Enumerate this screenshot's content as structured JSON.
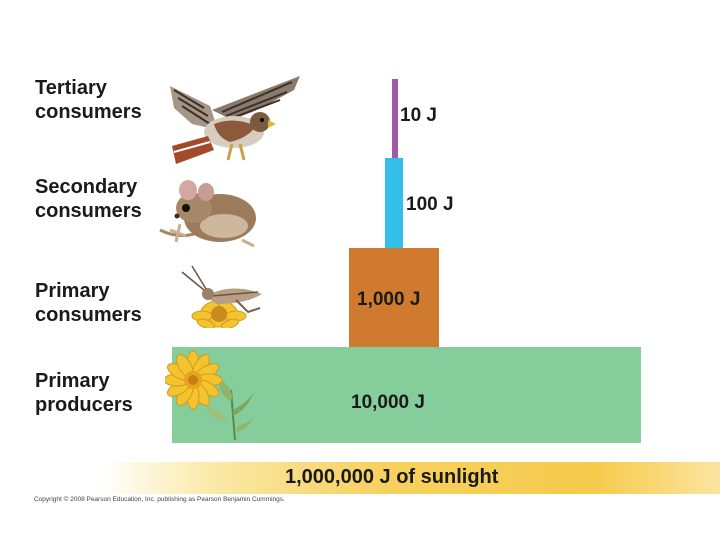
{
  "levels": [
    {
      "label_line1": "Tertiary",
      "label_line2": "consumers",
      "energy": "10 J",
      "color": "#9e5aa8",
      "icon": "hawk-icon"
    },
    {
      "label_line1": "Secondary",
      "label_line2": "consumers",
      "energy": "100 J",
      "color": "#33bfe9",
      "icon": "mouse-icon"
    },
    {
      "label_line1": "Primary",
      "label_line2": "consumers",
      "energy": "1,000 J",
      "color": "#cf7a2e",
      "icon": "grasshopper-icon"
    },
    {
      "label_line1": "Primary",
      "label_line2": "producers",
      "energy": "10,000 J",
      "color": "#85cd9b",
      "icon": "flower-icon"
    }
  ],
  "sunlight": {
    "label": "1,000,000 J of sunlight",
    "color": "#f6cb4c"
  },
  "copyright": "Copyright © 2008 Pearson Education, Inc. publishing as Pearson Benjamin Cummings."
}
